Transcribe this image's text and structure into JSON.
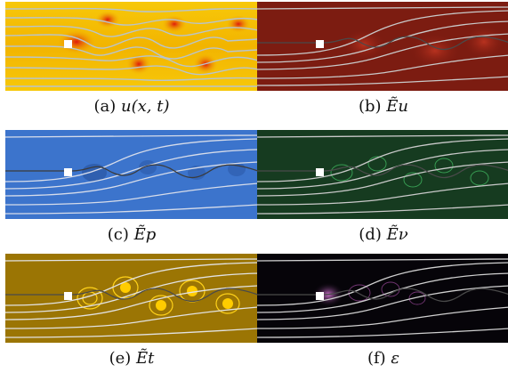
{
  "figure": {
    "panels": [
      {
        "id": "a",
        "letter": "(a)",
        "symbol": "u(x, t)",
        "colormap": "yellow-red",
        "bg": "#f5c400",
        "accent": "#e02010"
      },
      {
        "id": "b",
        "letter": "(b)",
        "symbol": "Ẽu",
        "colormap": "dark-red",
        "bg": "#7a1a10",
        "accent": "#c23a28"
      },
      {
        "id": "c",
        "letter": "(c)",
        "symbol": "Ẽp",
        "colormap": "blue",
        "bg": "#3a72c9",
        "accent": "#1b3f8a"
      },
      {
        "id": "d",
        "letter": "(d)",
        "symbol": "Ẽν",
        "colormap": "dark-green",
        "bg": "#173e22",
        "accent": "#3fb35e"
      },
      {
        "id": "e",
        "letter": "(e)",
        "symbol": "Ẽt",
        "colormap": "gold",
        "bg": "#9a7404",
        "accent": "#ffcc00"
      },
      {
        "id": "f",
        "letter": "(f)",
        "symbol": "ε",
        "colormap": "black-magenta",
        "bg": "#050308",
        "accent": "#d070d0"
      }
    ]
  }
}
